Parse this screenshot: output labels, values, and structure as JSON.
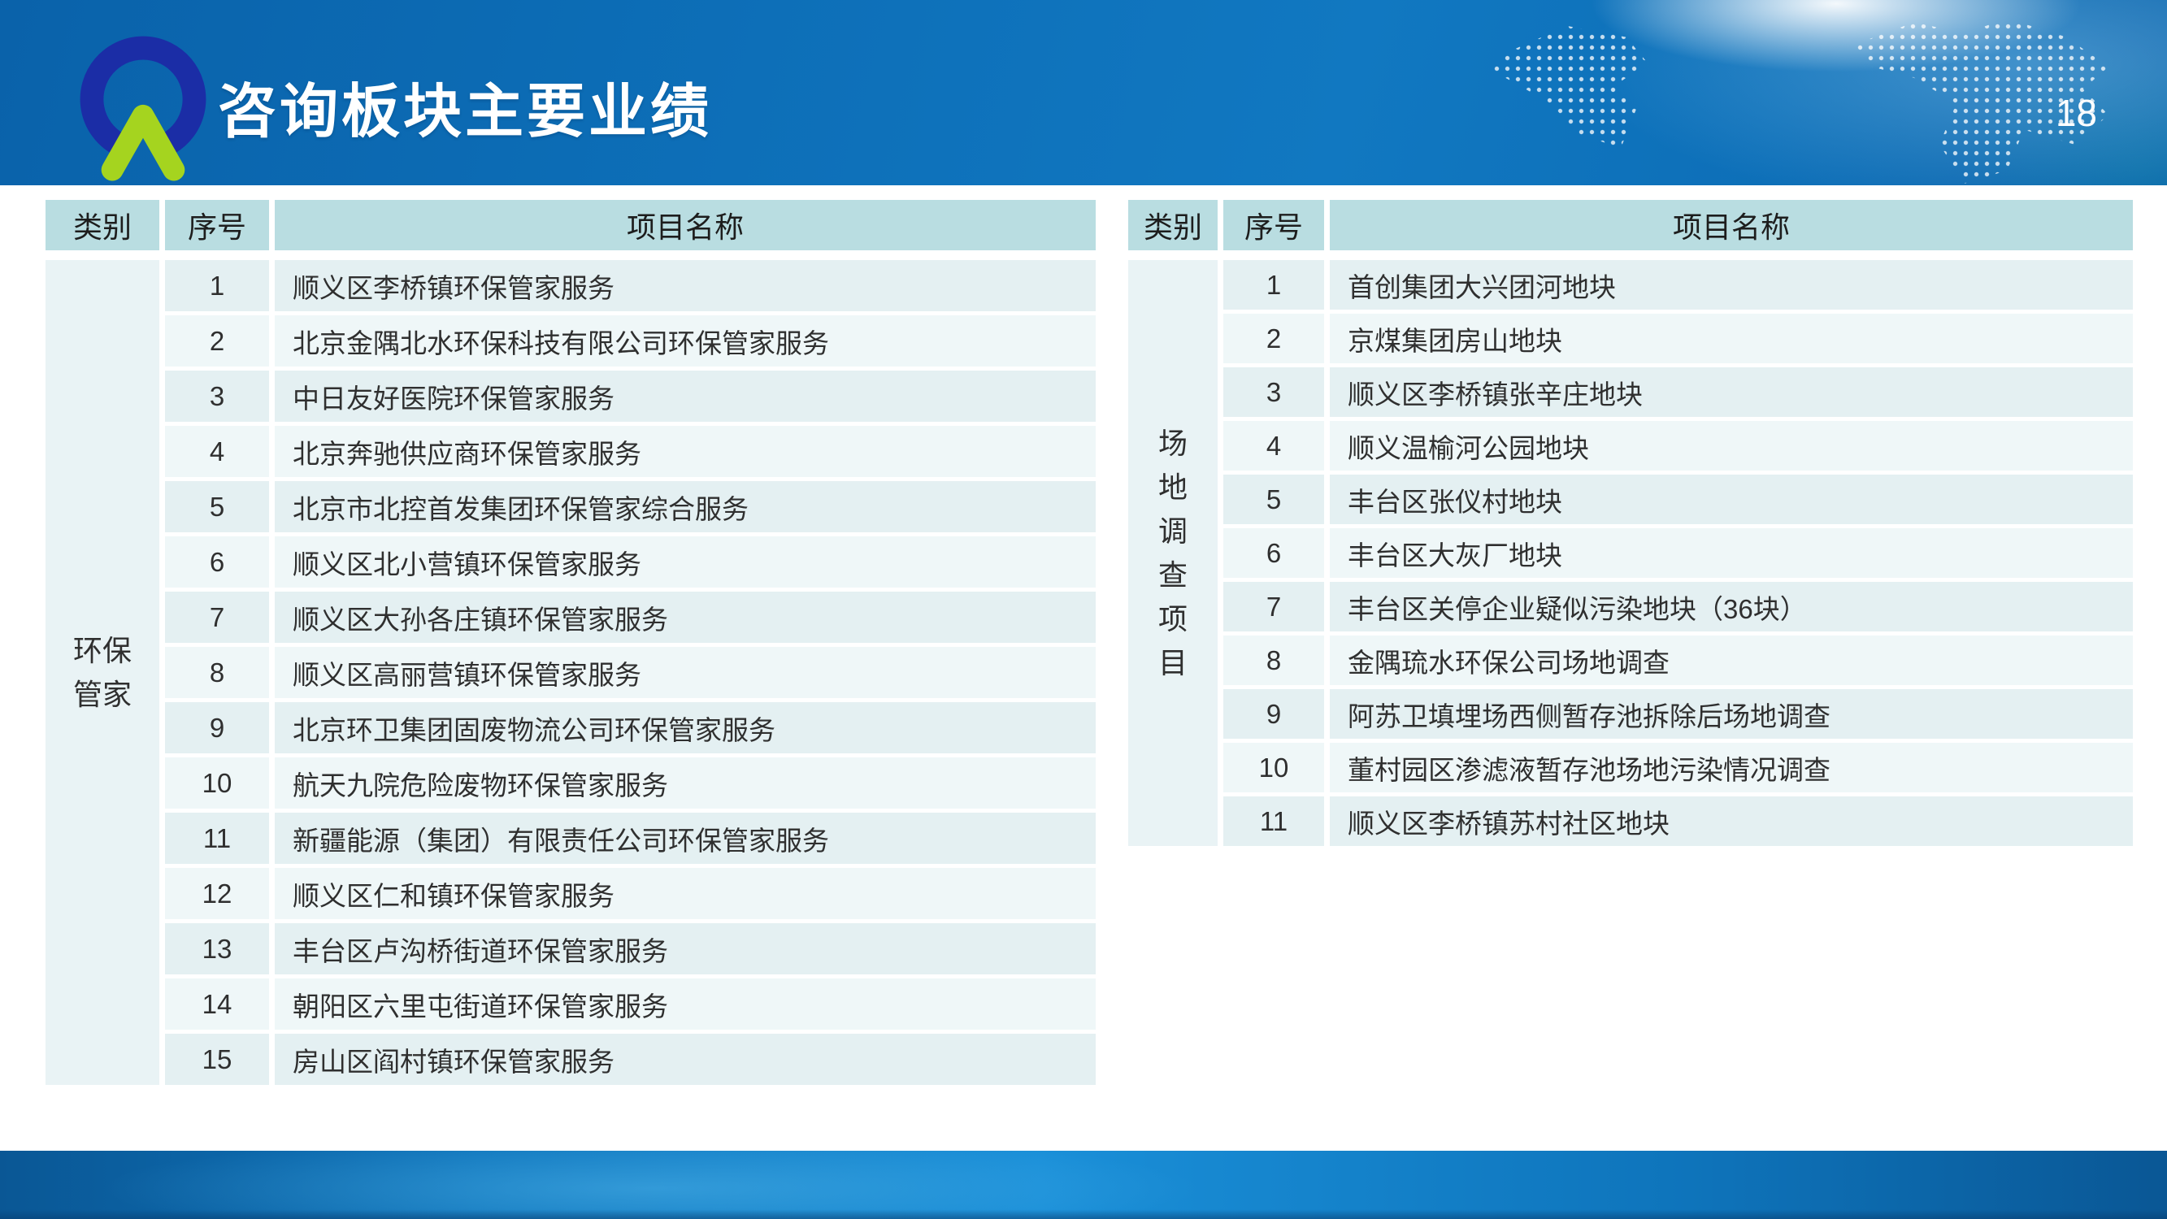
{
  "slide": {
    "title": "咨询板块主要业绩",
    "page_number": "18"
  },
  "icons": {
    "logo": "company-logo-ring-chevron",
    "map_decoration": "dotted-world-map"
  },
  "colors": {
    "header_blue": "#0d6fb8",
    "header_blue_dark": "#0a62aa",
    "header_blue_light": "#1178c1",
    "footer_blue": "#0e74bb",
    "footer_blue_light": "#1a8fd8",
    "footer_blue_dark": "#0a5795",
    "logo_ring": "#1b2da6",
    "logo_chevron": "#a5d41f",
    "table_header_bg": "#b9dde1",
    "row_odd_bg": "#e4f0f2",
    "row_even_bg": "#eff7f8",
    "category_bg": "#e9f3f5",
    "cell_text": "#2f2f2f",
    "title_text": "#ffffff"
  },
  "tables": [
    {
      "id": "environmental-stewardship",
      "headers": {
        "category": "类别",
        "no": "序号",
        "name": "项目名称"
      },
      "category_lines": [
        "环保",
        "管家"
      ],
      "rows": [
        {
          "no": "1",
          "name": "顺义区李桥镇环保管家服务"
        },
        {
          "no": "2",
          "name": "北京金隅北水环保科技有限公司环保管家服务"
        },
        {
          "no": "3",
          "name": "中日友好医院环保管家服务"
        },
        {
          "no": "4",
          "name": "北京奔驰供应商环保管家服务"
        },
        {
          "no": "5",
          "name": "北京市北控首发集团环保管家综合服务"
        },
        {
          "no": "6",
          "name": "顺义区北小营镇环保管家服务"
        },
        {
          "no": "7",
          "name": "顺义区大孙各庄镇环保管家服务"
        },
        {
          "no": "8",
          "name": "顺义区高丽营镇环保管家服务"
        },
        {
          "no": "9",
          "name": "北京环卫集团固废物流公司环保管家服务"
        },
        {
          "no": "10",
          "name": "航天九院危险废物环保管家服务"
        },
        {
          "no": "11",
          "name": "新疆能源（集团）有限责任公司环保管家服务"
        },
        {
          "no": "12",
          "name": "顺义区仁和镇环保管家服务"
        },
        {
          "no": "13",
          "name": "丰台区卢沟桥街道环保管家服务"
        },
        {
          "no": "14",
          "name": "朝阳区六里屯街道环保管家服务"
        },
        {
          "no": "15",
          "name": "房山区阎村镇环保管家服务"
        }
      ]
    },
    {
      "id": "site-investigation",
      "headers": {
        "category": "类别",
        "no": "序号",
        "name": "项目名称"
      },
      "category_lines": [
        "场",
        "地",
        "调",
        "查",
        "项",
        "目"
      ],
      "rows": [
        {
          "no": "1",
          "name": "首创集团大兴团河地块"
        },
        {
          "no": "2",
          "name": "京煤集团房山地块"
        },
        {
          "no": "3",
          "name": "顺义区李桥镇张辛庄地块"
        },
        {
          "no": "4",
          "name": "顺义温榆河公园地块"
        },
        {
          "no": "5",
          "name": "丰台区张仪村地块"
        },
        {
          "no": "6",
          "name": "丰台区大灰厂地块"
        },
        {
          "no": "7",
          "name": "丰台区关停企业疑似污染地块（36块）"
        },
        {
          "no": "8",
          "name": "金隅琉水环保公司场地调查"
        },
        {
          "no": "9",
          "name": "阿苏卫填埋场西侧暂存池拆除后场地调查"
        },
        {
          "no": "10",
          "name": "董村园区渗滤液暂存池场地污染情况调查"
        },
        {
          "no": "11",
          "name": "顺义区李桥镇苏村社区地块"
        }
      ]
    }
  ]
}
